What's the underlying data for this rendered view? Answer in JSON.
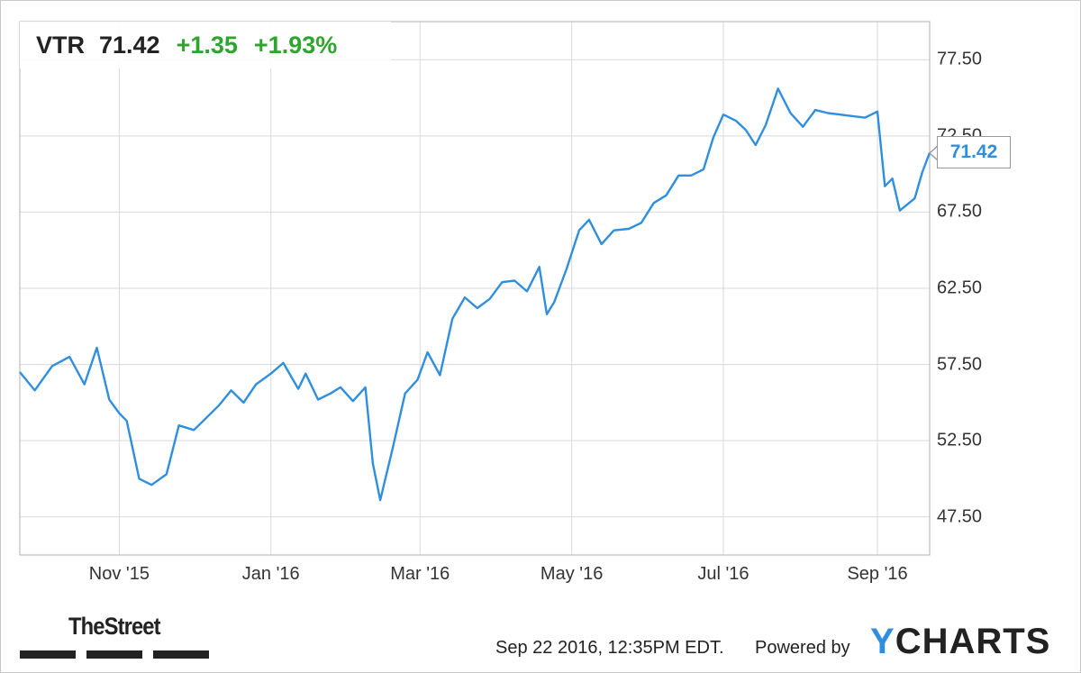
{
  "header": {
    "ticker": "VTR",
    "price": "71.42",
    "change": "+1.35",
    "change_pct": "+1.93%"
  },
  "last_value_tag": "71.42",
  "footer": {
    "timestamp": "Sep 22 2016, 12:35PM EDT.",
    "powered_by": "Powered by",
    "brand_y": "Y",
    "brand_rest": "CHARTS",
    "publisher": "TheStreet"
  },
  "colors": {
    "line": "#2f8fde",
    "positive": "#2fa52f",
    "grid": "#d9d9d9",
    "brand": "#2f8fde"
  },
  "chart_data": {
    "type": "line",
    "title": "",
    "xlabel": "",
    "ylabel": "",
    "x_ticks": [
      "Nov '15",
      "Jan '16",
      "Mar '16",
      "May '16",
      "Jul '16",
      "Sep '16"
    ],
    "y_ticks": [
      "47.50",
      "52.50",
      "57.50",
      "62.50",
      "67.50",
      "72.50",
      "77.50"
    ],
    "ylim": [
      45.0,
      80.0
    ],
    "xlim": [
      "2015-09-22",
      "2016-09-22"
    ],
    "grid": true,
    "axis_side": "right",
    "series": [
      {
        "x": [
          "2015-09-22",
          "2015-09-28",
          "2015-10-05",
          "2015-10-12",
          "2015-10-18",
          "2015-10-23",
          "2015-10-28",
          "2015-11-01",
          "2015-11-04",
          "2015-11-09",
          "2015-11-14",
          "2015-11-20",
          "2015-11-25",
          "2015-12-01",
          "2015-12-06",
          "2015-12-11",
          "2015-12-16",
          "2015-12-21",
          "2015-12-26",
          "2016-01-01",
          "2016-01-06",
          "2016-01-12",
          "2016-01-15",
          "2016-01-20",
          "2016-01-25",
          "2016-01-29",
          "2016-02-03",
          "2016-02-08",
          "2016-02-11",
          "2016-02-14",
          "2016-02-19",
          "2016-02-24",
          "2016-02-29",
          "2016-03-04",
          "2016-03-09",
          "2016-03-14",
          "2016-03-19",
          "2016-03-24",
          "2016-03-29",
          "2016-04-03",
          "2016-04-08",
          "2016-04-13",
          "2016-04-18",
          "2016-04-21",
          "2016-04-24",
          "2016-04-29",
          "2016-05-04",
          "2016-05-08",
          "2016-05-13",
          "2016-05-18",
          "2016-05-24",
          "2016-05-29",
          "2016-06-03",
          "2016-06-08",
          "2016-06-13",
          "2016-06-18",
          "2016-06-23",
          "2016-06-27",
          "2016-07-01",
          "2016-07-06",
          "2016-07-10",
          "2016-07-14",
          "2016-07-18",
          "2016-07-23",
          "2016-07-28",
          "2016-08-02",
          "2016-08-07",
          "2016-08-12",
          "2016-08-17",
          "2016-08-22",
          "2016-08-27",
          "2016-09-01",
          "2016-09-04",
          "2016-09-07",
          "2016-09-10",
          "2016-09-16",
          "2016-09-19",
          "2016-09-22"
        ],
        "y": [
          57.0,
          55.8,
          57.4,
          58.0,
          56.2,
          58.6,
          55.2,
          54.3,
          53.8,
          50.0,
          49.6,
          50.3,
          53.5,
          53.2,
          54.0,
          54.8,
          55.8,
          55.0,
          56.2,
          56.9,
          57.6,
          55.9,
          56.9,
          55.2,
          55.6,
          56.0,
          55.1,
          56.0,
          51.0,
          48.6,
          52.0,
          55.6,
          56.5,
          58.3,
          56.8,
          60.5,
          61.9,
          61.2,
          61.8,
          62.9,
          63.0,
          62.3,
          63.9,
          60.8,
          61.6,
          63.8,
          66.3,
          67.0,
          65.4,
          66.3,
          66.4,
          66.8,
          68.1,
          68.6,
          69.9,
          69.9,
          70.3,
          72.4,
          73.9,
          73.5,
          72.9,
          71.9,
          73.2,
          75.6,
          74.0,
          73.1,
          74.2,
          74.0,
          73.9,
          73.8,
          73.7,
          74.1,
          69.2,
          69.7,
          67.6,
          68.4,
          70.1,
          71.4
        ]
      }
    ]
  }
}
